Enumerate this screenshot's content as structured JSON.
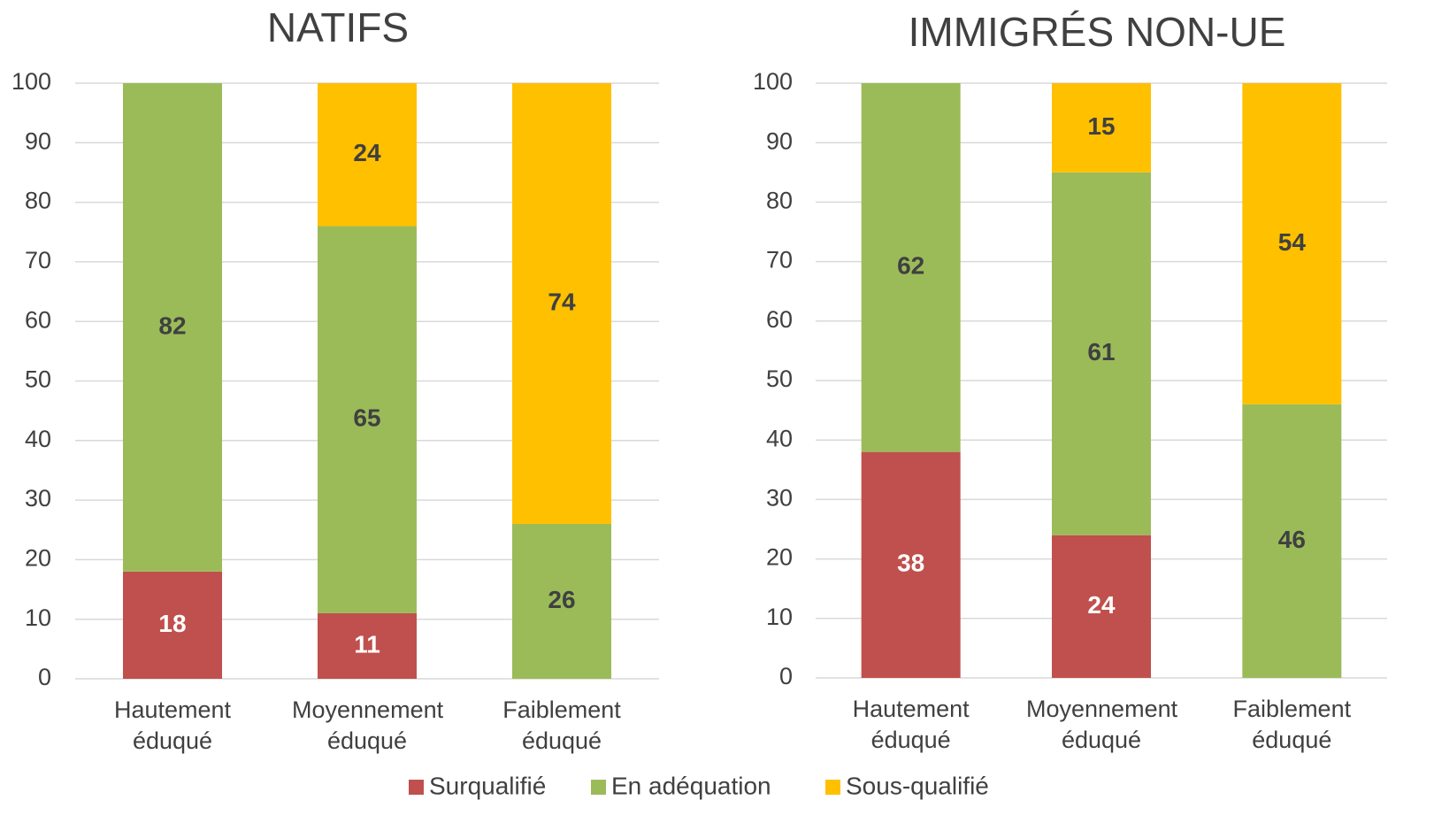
{
  "chart_data": [
    {
      "type": "stacked_bar",
      "title": "NATIFS",
      "categories": [
        "Hautement éduqué",
        "Moyennement éduqué",
        "Faiblement éduqué"
      ],
      "series": [
        {
          "name": "Surqualifié",
          "color": "#c0504d",
          "label_color": "#ffffff",
          "values": [
            18,
            11,
            null
          ]
        },
        {
          "name": "En adéquation",
          "color": "#9bbb59",
          "label_color": "#404040",
          "values": [
            82,
            65,
            26
          ]
        },
        {
          "name": "Sous-qualifié",
          "color": "#ffc000",
          "label_color": "#404040",
          "values": [
            null,
            24,
            74
          ]
        }
      ],
      "ylim": [
        0,
        100
      ],
      "yticks": [
        0,
        10,
        20,
        30,
        40,
        50,
        60,
        70,
        80,
        90,
        100
      ],
      "grid": true
    },
    {
      "type": "stacked_bar",
      "title": "IMMIGRÉS NON-UE",
      "categories": [
        "Hautement éduqué",
        "Moyennement éduqué",
        "Faiblement éduqué"
      ],
      "series": [
        {
          "name": "Surqualifié",
          "color": "#c0504d",
          "label_color": "#ffffff",
          "values": [
            38,
            24,
            null
          ]
        },
        {
          "name": "En adéquation",
          "color": "#9bbb59",
          "label_color": "#404040",
          "values": [
            62,
            61,
            46
          ]
        },
        {
          "name": "Sous-qualifié",
          "color": "#ffc000",
          "label_color": "#404040",
          "values": [
            null,
            15,
            54
          ]
        }
      ],
      "ylim": [
        0,
        100
      ],
      "yticks": [
        0,
        10,
        20,
        30,
        40,
        50,
        60,
        70,
        80,
        90,
        100
      ],
      "grid": true
    }
  ]
}
